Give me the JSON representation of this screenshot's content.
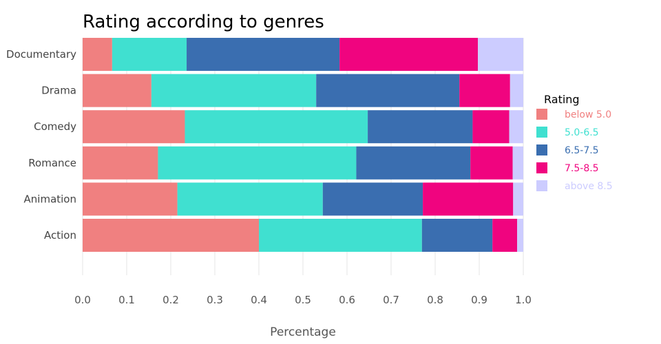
{
  "chart_data": {
    "type": "bar",
    "orientation": "horizontal",
    "stacked": true,
    "title": "Rating according to genres",
    "xlabel": "Percentage",
    "ylabel": "",
    "xlim": [
      0,
      1
    ],
    "x_ticks": [
      "0.0",
      "0.1",
      "0.2",
      "0.3",
      "0.4",
      "0.5",
      "0.6",
      "0.7",
      "0.8",
      "0.9",
      "1.0"
    ],
    "categories": [
      "Documentary",
      "Drama",
      "Comedy",
      "Romance",
      "Animation",
      "Action"
    ],
    "legend": {
      "title": "Rating",
      "placement": "right"
    },
    "grid": true,
    "series": [
      {
        "name": "below 5.0",
        "color": "#f08080",
        "values": [
          0.067,
          0.156,
          0.232,
          0.171,
          0.215,
          0.4
        ]
      },
      {
        "name": "5.0-6.5",
        "color": "#40e0d0",
        "values": [
          0.169,
          0.374,
          0.415,
          0.45,
          0.33,
          0.37
        ]
      },
      {
        "name": "6.5-7.5",
        "color": "#3a6eb0",
        "values": [
          0.347,
          0.325,
          0.238,
          0.259,
          0.227,
          0.16
        ]
      },
      {
        "name": "7.5-8.5",
        "color": "#f0047f",
        "values": [
          0.314,
          0.115,
          0.083,
          0.096,
          0.205,
          0.056
        ]
      },
      {
        "name": "above 8.5",
        "color": "#ccccff",
        "values": [
          0.103,
          0.03,
          0.032,
          0.024,
          0.023,
          0.014
        ]
      }
    ]
  }
}
